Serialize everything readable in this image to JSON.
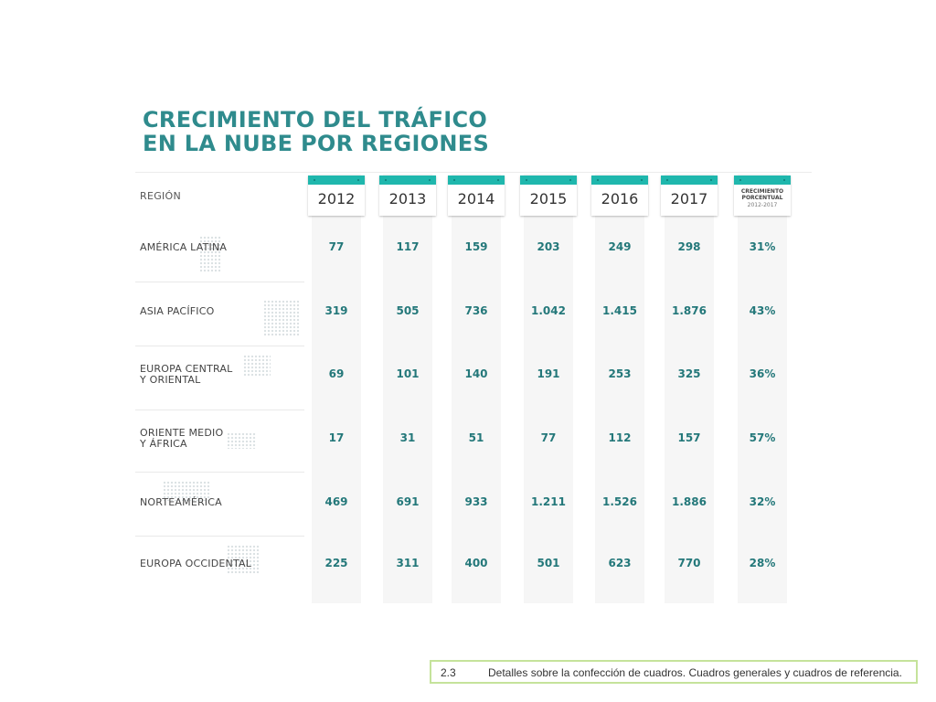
{
  "chart_data": {
    "type": "table",
    "title": [
      "CRECIMIENTO DEL TRÁFICO",
      "EN LA NUBE POR REGIONES"
    ],
    "region_header": "REGIÓN",
    "years": [
      "2012",
      "2013",
      "2014",
      "2015",
      "2016",
      "2017"
    ],
    "growth_header": {
      "lines": [
        "CRECIMIENTO",
        "PORCENTUAL"
      ],
      "range": "2012-2017"
    },
    "rows": [
      {
        "region": [
          "AMÉRICA LATINA"
        ],
        "values": [
          "77",
          "117",
          "159",
          "203",
          "249",
          "298"
        ],
        "growth": "31%"
      },
      {
        "region": [
          "ASIA PACÍFICO"
        ],
        "values": [
          "319",
          "505",
          "736",
          "1.042",
          "1.415",
          "1.876"
        ],
        "growth": "43%"
      },
      {
        "region": [
          "EUROPA CENTRAL",
          "Y ORIENTAL"
        ],
        "values": [
          "69",
          "101",
          "140",
          "191",
          "253",
          "325"
        ],
        "growth": "36%"
      },
      {
        "region": [
          "ORIENTE MEDIO",
          "Y ÁFRICA"
        ],
        "values": [
          "17",
          "31",
          "51",
          "77",
          "112",
          "157"
        ],
        "growth": "57%"
      },
      {
        "region": [
          "NORTEAMÉRICA"
        ],
        "values": [
          "469",
          "691",
          "933",
          "1.211",
          "1.526",
          "1.886"
        ],
        "growth": "32%"
      },
      {
        "region": [
          "EUROPA OCCIDENTAL"
        ],
        "values": [
          "225",
          "311",
          "400",
          "501",
          "623",
          "770"
        ],
        "growth": "28%"
      }
    ]
  },
  "colors": {
    "title": "#2f8b8d",
    "value_text": "#24787a",
    "year_tab": "#1fb7ad",
    "column_bg": "#f6f6f6",
    "caption_border": "#c5e39b"
  },
  "caption": {
    "number": "2.3",
    "text": "Detalles sobre la confección de cuadros. Cuadros generales y cuadros de referencia."
  }
}
